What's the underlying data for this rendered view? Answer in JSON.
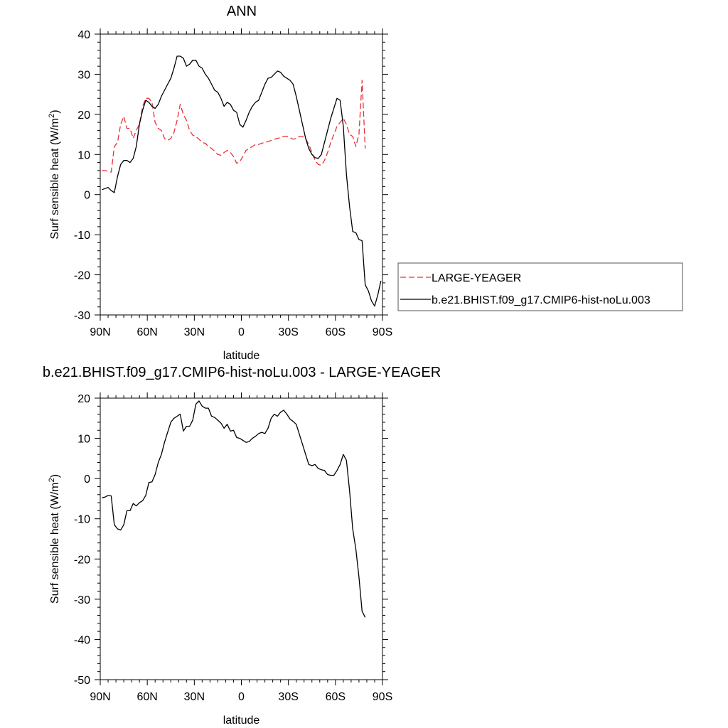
{
  "chart_data": [
    {
      "type": "line",
      "title": "ANN",
      "xlabel": "latitude",
      "ylabel": "Surf sensible heat (W/m",
      "ylabel_sup": "2",
      "ylabel_end": ")",
      "xlim": [
        90,
        -90
      ],
      "ylim": [
        -30,
        40
      ],
      "x_ticks": [
        90,
        60,
        30,
        0,
        -30,
        -60,
        -90
      ],
      "x_tick_labels": [
        "90N",
        "60N",
        "30N",
        "0",
        "30S",
        "60S",
        "90S"
      ],
      "y_ticks": [
        40,
        30,
        20,
        10,
        0,
        -10,
        -20,
        -30
      ],
      "y_tick_labels": [
        "40",
        "30",
        "20",
        "10",
        "0",
        "-10",
        "-20",
        "-30"
      ],
      "legend": "right",
      "series": [
        {
          "name": "LARGE-YEAGER",
          "color": "#e8303a",
          "dash": "dashed",
          "x": [
            89,
            87,
            85,
            83,
            81,
            79,
            77,
            75,
            73,
            71,
            69,
            67,
            65,
            63,
            61,
            59,
            57,
            55,
            53,
            51,
            49,
            47,
            45,
            43,
            41,
            39,
            37,
            35,
            33,
            31,
            29,
            27,
            25,
            23,
            21,
            19,
            17,
            15,
            13,
            11,
            9,
            7,
            5,
            3,
            1,
            -1,
            -3,
            -5,
            -7,
            -9,
            -11,
            -13,
            -15,
            -17,
            -19,
            -21,
            -23,
            -25,
            -27,
            -29,
            -31,
            -33,
            -35,
            -37,
            -39,
            -41,
            -43,
            -45,
            -47,
            -49,
            -51,
            -53,
            -55,
            -57,
            -59,
            -61,
            -63,
            -65,
            -67,
            -69,
            -71,
            -73,
            -75,
            -77,
            -79
          ],
          "values": [
            6.0,
            6.0,
            5.8,
            5.6,
            12.0,
            13.0,
            17.5,
            19.5,
            16.5,
            16.5,
            14.0,
            16.0,
            17.5,
            22.0,
            24.0,
            24.0,
            23.0,
            18.0,
            16.5,
            16.0,
            14.0,
            13.5,
            14.0,
            15.5,
            18.5,
            22.5,
            20.0,
            18.5,
            16.0,
            14.8,
            14.5,
            13.8,
            13.0,
            12.8,
            12.0,
            11.5,
            10.8,
            10.0,
            9.8,
            10.5,
            11.0,
            10.5,
            9.5,
            7.8,
            8.2,
            9.5,
            11.0,
            11.5,
            12.0,
            12.5,
            12.5,
            12.8,
            13.0,
            13.2,
            13.5,
            13.8,
            14.0,
            14.2,
            14.5,
            14.5,
            14.2,
            13.8,
            14.0,
            14.5,
            14.5,
            14.0,
            12.5,
            10.5,
            8.5,
            7.5,
            7.3,
            8.5,
            10.5,
            13.0,
            15.0,
            17.0,
            18.0,
            19.0,
            17.5,
            15.0,
            14.5,
            12.0,
            15.0,
            28.5,
            11.5
          ]
        },
        {
          "name": "b.e21.BHIST.f09_g17.CMIP6-hist-noLu.003",
          "color": "#000000",
          "dash": "solid",
          "x": [
            89,
            87,
            85,
            83,
            81,
            79,
            77,
            75,
            73,
            71,
            69,
            67,
            65,
            63,
            61,
            59,
            57,
            55,
            53,
            51,
            49,
            47,
            45,
            43,
            41,
            39,
            37,
            35,
            33,
            31,
            29,
            27,
            25,
            23,
            21,
            19,
            17,
            15,
            13,
            11,
            9,
            7,
            5,
            3,
            1,
            -1,
            -3,
            -5,
            -7,
            -9,
            -11,
            -13,
            -15,
            -17,
            -19,
            -21,
            -23,
            -25,
            -27,
            -29,
            -31,
            -33,
            -35,
            -37,
            -39,
            -41,
            -43,
            -45,
            -47,
            -49,
            -51,
            -53,
            -55,
            -57,
            -59,
            -61,
            -63,
            -65,
            -67,
            -69,
            -71,
            -73,
            -75,
            -77,
            -79,
            -81,
            -83,
            -85,
            -87,
            -89
          ],
          "values": [
            1.2,
            1.5,
            1.8,
            1.0,
            0.5,
            4.5,
            7.5,
            8.5,
            8.5,
            8.0,
            9.0,
            12.0,
            17.5,
            21.0,
            23.5,
            23.0,
            22.0,
            21.5,
            22.5,
            24.5,
            26.0,
            27.5,
            29.0,
            31.5,
            34.5,
            34.5,
            34.0,
            32.0,
            32.5,
            33.5,
            33.5,
            32.0,
            31.5,
            30.0,
            29.0,
            27.5,
            26.0,
            25.5,
            24.0,
            22.0,
            23.0,
            22.5,
            21.0,
            20.5,
            17.5,
            16.8,
            18.5,
            20.5,
            22.0,
            23.0,
            23.5,
            25.5,
            27.5,
            29.0,
            29.2,
            30.0,
            30.8,
            30.5,
            29.5,
            29.0,
            28.5,
            27.5,
            24.5,
            21.0,
            17.5,
            14.0,
            11.5,
            10.0,
            9.2,
            9.0,
            10.0,
            13.0,
            16.0,
            19.0,
            21.5,
            24.0,
            23.5,
            17.0,
            5.0,
            -3.0,
            -9.2,
            -9.5,
            -11.2,
            -11.5,
            -22.5,
            -24.0,
            -26.5,
            -27.8,
            -25.0,
            -21.5
          ]
        }
      ]
    },
    {
      "type": "line",
      "title": "b.e21.BHIST.f09_g17.CMIP6-hist-noLu.003 - LARGE-YEAGER",
      "xlabel": "latitude",
      "ylabel": "Surf sensible heat (W/m",
      "ylabel_sup": "2",
      "ylabel_end": ")",
      "xlim": [
        90,
        -90
      ],
      "ylim": [
        -50,
        20
      ],
      "x_ticks": [
        90,
        60,
        30,
        0,
        -30,
        -60,
        -90
      ],
      "x_tick_labels": [
        "90N",
        "60N",
        "30N",
        "0",
        "30S",
        "60S",
        "90S"
      ],
      "y_ticks": [
        20,
        10,
        0,
        -10,
        -20,
        -30,
        -40,
        -50
      ],
      "y_tick_labels": [
        "20",
        "10",
        "0",
        "-10",
        "-20",
        "-30",
        "-40",
        "-50"
      ],
      "series": [
        {
          "color": "#000000",
          "dash": "solid",
          "x": [
            89,
            87,
            85,
            83,
            81,
            79,
            77,
            75,
            73,
            71,
            69,
            67,
            65,
            63,
            61,
            59,
            57,
            55,
            53,
            51,
            49,
            47,
            45,
            43,
            41,
            39,
            37,
            35,
            33,
            31,
            29,
            27,
            25,
            23,
            21,
            19,
            17,
            15,
            13,
            11,
            9,
            7,
            5,
            3,
            1,
            -1,
            -3,
            -5,
            -7,
            -9,
            -11,
            -13,
            -15,
            -17,
            -19,
            -21,
            -23,
            -25,
            -27,
            -29,
            -31,
            -33,
            -35,
            -37,
            -39,
            -41,
            -43,
            -45,
            -47,
            -49,
            -51,
            -53,
            -55,
            -57,
            -59,
            -61,
            -63,
            -65,
            -67,
            -69,
            -71,
            -73,
            -75,
            -77,
            -79
          ],
          "values": [
            -4.8,
            -4.6,
            -4.2,
            -4.3,
            -11.5,
            -12.5,
            -12.8,
            -11.5,
            -8.0,
            -8.0,
            -6.2,
            -6.8,
            -6.0,
            -5.5,
            -4.2,
            -1.0,
            -0.8,
            1.0,
            4.0,
            6.0,
            9.0,
            11.5,
            14.0,
            15.0,
            15.5,
            16.0,
            11.8,
            13.0,
            13.0,
            14.5,
            18.5,
            19.3,
            18.0,
            17.5,
            17.5,
            15.5,
            15.2,
            14.5,
            13.8,
            12.5,
            13.5,
            11.8,
            12.0,
            10.2,
            10.0,
            9.5,
            9.0,
            9.2,
            10.0,
            10.5,
            11.2,
            11.5,
            11.2,
            12.5,
            15.0,
            16.0,
            15.5,
            16.5,
            17.0,
            16.0,
            14.8,
            14.2,
            13.5,
            11.0,
            8.5,
            6.0,
            3.5,
            3.2,
            3.5,
            2.5,
            2.2,
            2.0,
            1.0,
            0.8,
            0.8,
            2.0,
            3.5,
            6.0,
            4.5,
            -3.0,
            -12.5,
            -17.5,
            -24.5,
            -33.0,
            -34.5
          ]
        }
      ]
    }
  ]
}
